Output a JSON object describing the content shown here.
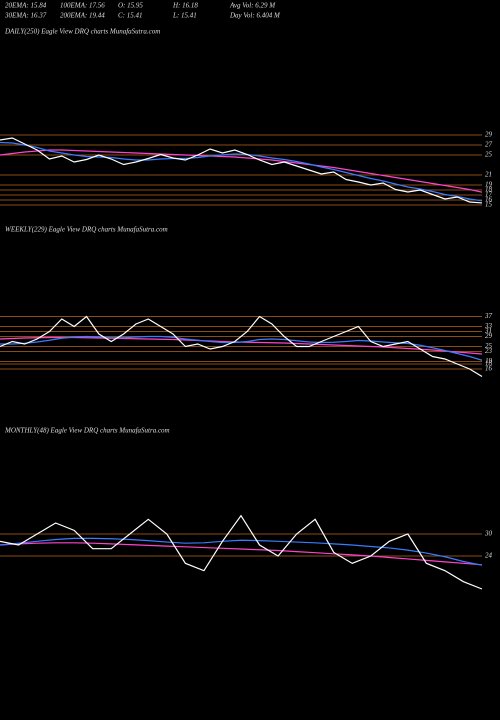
{
  "header": {
    "rows": [
      [
        "20EMA: 15.84",
        "100EMA: 17.56",
        "O: 15.95",
        "H: 16.18",
        "Avg Vol: 6.29 M"
      ],
      [
        "30EMA: 16.37",
        "200EMA: 19.44",
        "C: 15.41",
        "L: 15.41",
        "Day Vol: 6.404 M"
      ]
    ]
  },
  "chart_data": [
    {
      "type": "line",
      "title": "DAILY(250) Eagle View DRQ charts MunafaSutra.com",
      "ylim": [
        14,
        30
      ],
      "yticks": [
        29,
        27,
        25,
        21,
        19,
        18,
        17,
        16,
        15
      ],
      "grid": true,
      "series": [
        {
          "color": "#ff44cc",
          "values": [
            25,
            25.3,
            25.6,
            25.8,
            26,
            26,
            25.9,
            25.8,
            25.7,
            25.6,
            25.5,
            25.4,
            25.3,
            25.2,
            25.1,
            25,
            24.9,
            24.8,
            24.7,
            24.6,
            24.4,
            24.2,
            24,
            23.7,
            23.4,
            23.1,
            22.8,
            22.5,
            22.1,
            21.7,
            21.3,
            20.9,
            20.5,
            20.1,
            19.7,
            19.3,
            18.9,
            18.5,
            18.1,
            17.56
          ]
        },
        {
          "color": "#3a7bff",
          "values": [
            27.5,
            27.4,
            27,
            26.5,
            25.8,
            25.4,
            25,
            24.7,
            24.6,
            24.5,
            24.2,
            24,
            24,
            24.2,
            24.3,
            24.3,
            24.5,
            24.8,
            25,
            25.2,
            25.1,
            24.8,
            24.4,
            24.1,
            23.7,
            23.2,
            22.6,
            22.1,
            21.5,
            20.9,
            20.3,
            19.8,
            19.2,
            18.6,
            18.2,
            17.7,
            17.1,
            16.7,
            16.2,
            15.84
          ]
        },
        {
          "color": "#ffffff",
          "values": [
            28,
            28.4,
            27.2,
            26,
            24.2,
            24.8,
            23.6,
            24.1,
            25,
            24.2,
            23.1,
            23.6,
            24.3,
            25.1,
            24.4,
            24,
            25,
            26.2,
            25.4,
            26,
            25.1,
            24,
            23.1,
            23.6,
            22.8,
            22,
            21.2,
            21.6,
            20.1,
            19.6,
            19,
            19.4,
            18.1,
            17.6,
            18,
            17.1,
            16.2,
            16.6,
            15.6,
            15.41
          ]
        }
      ]
    },
    {
      "type": "line",
      "title": "WEEKLY(229) Eagle View DRQ charts MunafaSutra.com",
      "ylim": [
        12,
        40
      ],
      "yticks": [
        37,
        33,
        31,
        29,
        25,
        23,
        19,
        18,
        16
      ],
      "grid": true,
      "series": [
        {
          "color": "#ff44cc",
          "values": [
            28,
            28.2,
            28.4,
            28.5,
            28.6,
            28.6,
            28.6,
            28.5,
            28.4,
            28.3,
            28.2,
            28.1,
            28,
            27.9,
            27.8,
            27.6,
            27.4,
            27.2,
            27,
            26.8,
            26.7,
            26.6,
            26.5,
            26.4,
            26.2,
            26,
            25.8,
            25.6,
            25.4,
            25.2,
            25,
            24.8,
            24.5,
            24.2,
            23.9,
            23.6,
            23.2,
            22.8,
            22.4,
            22
          ]
        },
        {
          "color": "#3a7bff",
          "values": [
            26,
            26,
            26.3,
            26.8,
            27.5,
            28.3,
            28.8,
            29,
            28.8,
            28.5,
            28.5,
            28.8,
            29,
            29,
            28.7,
            28,
            27.5,
            27,
            26.6,
            26.6,
            27,
            27.8,
            28,
            27.8,
            27.3,
            26.8,
            26.6,
            26.7,
            27,
            27.4,
            27.2,
            26.8,
            26.5,
            26.2,
            25.5,
            24.5,
            23.4,
            22.2,
            21,
            19.5
          ]
        },
        {
          "color": "#ffffff",
          "values": [
            25,
            27,
            26,
            28,
            31,
            36,
            33,
            37,
            30,
            27,
            30,
            34,
            36,
            33,
            30,
            25,
            26,
            24,
            25,
            27,
            31,
            37,
            34,
            29,
            25,
            25,
            27,
            29,
            31,
            33,
            27,
            25,
            26,
            27,
            24,
            21,
            20,
            18,
            16,
            13
          ]
        }
      ]
    },
    {
      "type": "line",
      "title": "MONTHLY(48) Eagle View DRQ charts MunafaSutra.com",
      "ylim": [
        12,
        36
      ],
      "yticks": [
        30,
        24
      ],
      "grid": true,
      "series": [
        {
          "color": "#ff44cc",
          "values": [
            27,
            27.3,
            27.5,
            27.6,
            27.6,
            27.5,
            27.3,
            27.1,
            26.9,
            26.7,
            26.5,
            26.3,
            26.1,
            25.9,
            25.7,
            25.5,
            25.2,
            24.9,
            24.6,
            24.3,
            24,
            23.6,
            23.2,
            22.8,
            22.4,
            22,
            21.6
          ]
        },
        {
          "color": "#3a7bff",
          "values": [
            27,
            27.5,
            28,
            28.5,
            28.8,
            28.8,
            28.7,
            28.5,
            28.2,
            27.8,
            27.5,
            27.6,
            28,
            28.3,
            28.2,
            28,
            27.8,
            27.6,
            27.3,
            27,
            26.6,
            26.2,
            25.6,
            24.8,
            23.8,
            22.5,
            21.5
          ]
        },
        {
          "color": "#ffffff",
          "values": [
            28,
            27,
            30,
            33,
            31,
            26,
            26,
            30,
            34,
            30,
            22,
            20,
            28,
            35,
            27,
            24,
            30,
            34,
            25,
            22,
            24,
            28,
            30,
            22,
            20,
            17,
            15
          ]
        }
      ]
    }
  ]
}
